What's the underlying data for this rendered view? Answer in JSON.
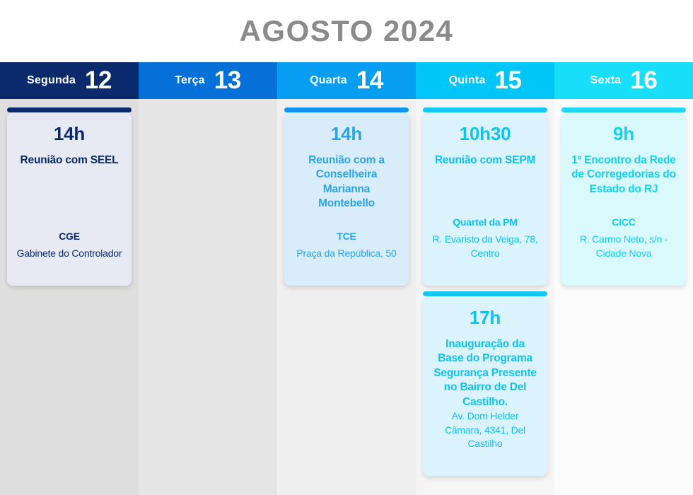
{
  "title": "AGOSTO 2024",
  "title_color": "#8b8b8b",
  "days": [
    {
      "name": "Segunda",
      "number": "12",
      "header_bg": "#0a2a6b",
      "column_bg": "#dedede",
      "events": [
        {
          "time": "14h",
          "title": "Reunião com SEEL",
          "venue": "CGE",
          "address": "Gabinete do Controlador",
          "card_bg": "#e7eaf3",
          "accent": "#0a2a6b",
          "text": "#0a2a6b"
        }
      ]
    },
    {
      "name": "Terça",
      "number": "13",
      "header_bg": "#0570d7",
      "column_bg": "#e5e5e5",
      "events": []
    },
    {
      "name": "Quarta",
      "number": "14",
      "header_bg": "#069ef3",
      "column_bg": "#efefef",
      "events": [
        {
          "time": "14h",
          "title": "Reunião com a Conselheira Marianna Montebello",
          "venue": "TCE",
          "address": "Praça da República, 50",
          "card_bg": "#d8ecfa",
          "accent": "#0e97f2",
          "text": "#2aa4ea"
        }
      ]
    },
    {
      "name": "Quinta",
      "number": "15",
      "header_bg": "#00c6f7",
      "column_bg": "#f5f5f5",
      "events": [
        {
          "time": "10h30",
          "title": "Reunião com SEPM",
          "venue": "Quartel da PM",
          "address": "R. Evaristo da Veiga, 78, Centro",
          "card_bg": "#daf3fc",
          "accent": "#16c9f4",
          "text": "#10c2ef"
        },
        {
          "time": "17h",
          "title": "Inauguração da Base do Programa Segurança Presente no Bairro de Del Castilho.",
          "venue": "",
          "address": "Av. Dom Helder Câmara, 4341, Del Castilho",
          "card_bg": "#daf3fc",
          "accent": "#16c9f4",
          "text": "#10c2ef"
        }
      ]
    },
    {
      "name": "Sexta",
      "number": "16",
      "header_bg": "#17dff9",
      "column_bg": "#fbfbfb",
      "events": [
        {
          "time": "9h",
          "title": "1º Encontro da Rede de Corregedorias do Estado do RJ",
          "venue": "CICC",
          "address": "R. Carmo Neto, s/n - Cidade Nova",
          "card_bg": "#daf9fd",
          "accent": "#20d9f4",
          "text": "#10d3f0"
        }
      ]
    }
  ]
}
